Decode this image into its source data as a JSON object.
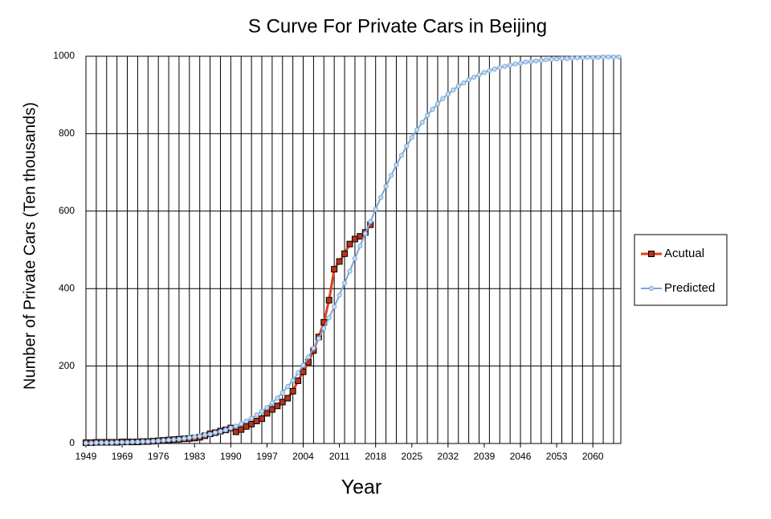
{
  "chart_data": {
    "type": "line",
    "title": "S Curve For Private Cars in Beijing",
    "x_label": "Year",
    "y_label": "Number of Private Cars (Ten thousands)",
    "categories": [
      "1949",
      null,
      null,
      null,
      null,
      null,
      null,
      "1969",
      null,
      null,
      null,
      null,
      null,
      null,
      "1976",
      null,
      null,
      null,
      null,
      null,
      null,
      "1983",
      null,
      null,
      null,
      null,
      null,
      null,
      "1990",
      null,
      null,
      null,
      null,
      null,
      null,
      "1997",
      null,
      null,
      null,
      null,
      null,
      null,
      "2004",
      null,
      null,
      null,
      null,
      null,
      null,
      "2011",
      null,
      null,
      null,
      null,
      null,
      null,
      "2018",
      null,
      null,
      null,
      null,
      null,
      null,
      "2025",
      null,
      null,
      null,
      null,
      null,
      null,
      "2032",
      null,
      null,
      null,
      null,
      null,
      null,
      "2039",
      null,
      null,
      null,
      null,
      null,
      null,
      "2046",
      null,
      null,
      null,
      null,
      null,
      null,
      "2053",
      null,
      null,
      null,
      null,
      null,
      null,
      "2060",
      null,
      null,
      null,
      null,
      null
    ],
    "series": [
      {
        "name": "Acutual",
        "color": "#e0401e",
        "marker": "square",
        "marker_color": "#b8321c",
        "values": [
          2,
          2,
          3,
          3,
          3,
          3,
          3,
          4,
          4,
          4,
          4,
          5,
          5,
          6,
          7,
          8,
          9,
          10,
          11,
          12,
          13,
          14,
          16,
          20,
          25,
          28,
          32,
          35,
          40,
          30,
          36,
          44,
          50,
          58,
          64,
          78,
          88,
          97,
          107,
          117,
          135,
          162,
          185,
          210,
          240,
          275,
          313,
          370,
          450,
          470,
          490,
          515,
          528,
          535,
          545,
          565,
          null,
          null,
          null,
          null,
          null,
          null,
          null,
          null,
          null,
          null,
          null,
          null,
          null,
          null,
          null,
          null,
          null,
          null,
          null,
          null,
          null,
          null,
          null,
          null,
          null,
          null,
          null,
          null,
          null,
          null,
          null,
          null,
          null,
          null,
          null,
          null,
          null,
          null,
          null,
          null,
          null,
          null,
          null,
          null,
          null,
          null,
          null,
          null
        ]
      },
      {
        "name": "Predicted",
        "color": "#7ba7d9",
        "marker": "circle",
        "marker_color": "#c9dcf2",
        "values": [
          1,
          1,
          2,
          2,
          2,
          2,
          3,
          3,
          3,
          4,
          4,
          5,
          5,
          6,
          7,
          8,
          9,
          10,
          11,
          13,
          15,
          17,
          19,
          22,
          24,
          28,
          31,
          35,
          40,
          45,
          51,
          58,
          65,
          74,
          83,
          93,
          105,
          117,
          131,
          147,
          163,
          182,
          202,
          223,
          246,
          271,
          297,
          325,
          353,
          383,
          414,
          445,
          478,
          510,
          542,
          573,
          605,
          635,
          664,
          692,
          719,
          744,
          768,
          790,
          810,
          829,
          847,
          863,
          877,
          891,
          902,
          913,
          923,
          931,
          939,
          946,
          952,
          958,
          963,
          967,
          971,
          974,
          977,
          980,
          982,
          985,
          986,
          988,
          989,
          991,
          992,
          993,
          994,
          994,
          995,
          996,
          996,
          997,
          997,
          997,
          998,
          998,
          998,
          998
        ]
      }
    ],
    "ylim": [
      0,
      1000
    ],
    "yticks": [
      0,
      200,
      400,
      600,
      800,
      1000
    ],
    "grid": true,
    "legend": "right"
  }
}
